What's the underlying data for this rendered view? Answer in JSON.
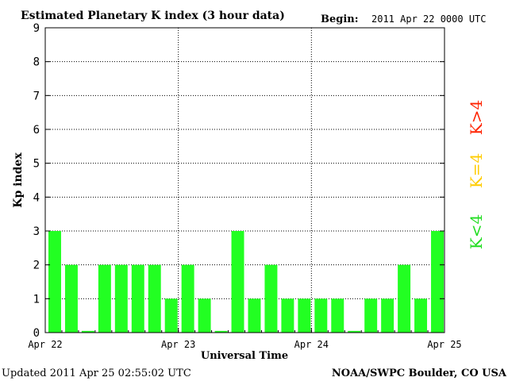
{
  "chart_data": {
    "type": "bar",
    "title": "Estimated Planetary K index (3 hour data)",
    "begin_label": "Begin:",
    "begin_value": "2011 Apr 22 0000 UTC",
    "xlabel": "Universal Time",
    "ylabel": "Kp index",
    "ylim": [
      0,
      9
    ],
    "yticks": [
      "0",
      "1",
      "2",
      "3",
      "4",
      "5",
      "6",
      "7",
      "8",
      "9"
    ],
    "xticks": [
      "Apr 22",
      "Apr 23",
      "Apr 24",
      "Apr 25"
    ],
    "bar_color": "#22ff22",
    "values": [
      3,
      2,
      0.05,
      2,
      2,
      2,
      2,
      1,
      2,
      1,
      0.05,
      3,
      1,
      2,
      1,
      1,
      1,
      1,
      0.05,
      1,
      1,
      2,
      1,
      3
    ],
    "grid": "dotted",
    "legend": [
      {
        "label": "K<4",
        "color": "#22dd22"
      },
      {
        "label": "K=4",
        "color": "#ffcc00"
      },
      {
        "label": "K>4",
        "color": "#ff2200"
      }
    ]
  },
  "footer": {
    "updated": "Updated 2011 Apr 25 02:55:02 UTC",
    "credit": "NOAA/SWPC Boulder, CO USA"
  }
}
